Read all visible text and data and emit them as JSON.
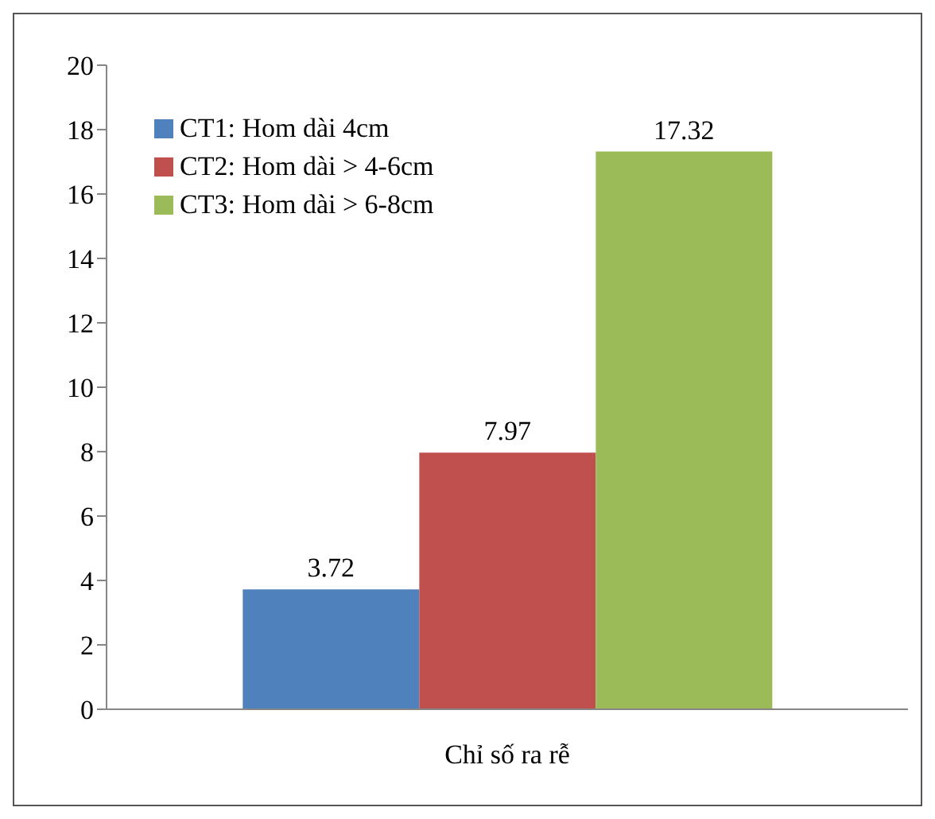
{
  "chart_data": {
    "type": "bar",
    "categories": [
      "Chỉ số ra rễ"
    ],
    "series": [
      {
        "name": "CT1: Hom dài 4cm",
        "color": "#4f81bd",
        "values": [
          3.72
        ]
      },
      {
        "name": "CT2: Hom dài > 4-6cm",
        "color": "#c0504d",
        "values": [
          7.97
        ]
      },
      {
        "name": "CT3: Hom dài > 6-8cm",
        "color": "#9bbb59",
        "values": [
          17.32
        ]
      }
    ],
    "ylim": [
      0,
      20
    ],
    "yticks": [
      0,
      2,
      4,
      6,
      8,
      10,
      12,
      14,
      16,
      18,
      20
    ],
    "grid": false,
    "legend": "top left",
    "data_labels": true
  }
}
